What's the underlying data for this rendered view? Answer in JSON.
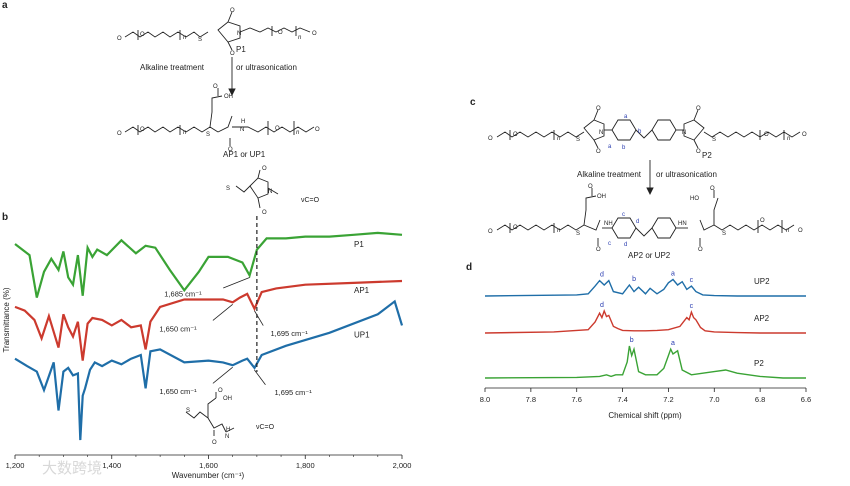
{
  "panels": {
    "a": "a",
    "b": "b",
    "c": "c",
    "d": "d"
  },
  "scheme_a": {
    "p1_label": "P1",
    "treatment": "Alkaline treatment",
    "treatment_alt": "or ultrasonication",
    "product_label": "AP1 or UP1",
    "n": "n",
    "oh": "OH",
    "o": "O",
    "s": "S",
    "n_atom": "N",
    "h": "H"
  },
  "scheme_c": {
    "p2_label": "P2",
    "treatment": "Alkaline treatment",
    "treatment_alt": "or ultrasonication",
    "product_label": "AP2 or UP2",
    "site_a": "a",
    "site_b": "b",
    "site_c": "c",
    "site_d": "d",
    "oh": "OH",
    "nh": "NH",
    "hn": "HN"
  },
  "inset_b": {
    "nu_top": "νC=O",
    "nu_bottom": "νC=O"
  },
  "chart_data": [
    {
      "type": "line",
      "title": "",
      "xlabel": "Wavenumber (cm⁻¹)",
      "ylabel": "Transmittance (%)",
      "xlim": [
        1200,
        2000
      ],
      "xticks": [
        "1,200",
        "1,400",
        "1,600",
        "1,800",
        "2,000"
      ],
      "series": [
        {
          "name": "P1",
          "color": "#3aa335",
          "x": [
            1200,
            1230,
            1245,
            1260,
            1275,
            1290,
            1300,
            1310,
            1320,
            1330,
            1340,
            1350,
            1360,
            1370,
            1390,
            1420,
            1450,
            1470,
            1490,
            1520,
            1550,
            1580,
            1600,
            1640,
            1670,
            1685,
            1700,
            1720,
            1760,
            1800,
            1850,
            1900,
            1950,
            2000
          ],
          "y": [
            6,
            5.4,
            3.1,
            4.5,
            5.2,
            4.6,
            5.6,
            4.2,
            3.8,
            5.4,
            3.2,
            5.8,
            5.3,
            5.7,
            5.4,
            6.2,
            5.5,
            5.9,
            5.8,
            4.6,
            3.5,
            4.5,
            5.3,
            5.3,
            5.0,
            4.3,
            5.7,
            6.3,
            6.3,
            6.4,
            6.4,
            6.5,
            6.6,
            6.5
          ]
        },
        {
          "name": "AP1",
          "color": "#cc3a2e",
          "x": [
            1200,
            1220,
            1240,
            1255,
            1270,
            1290,
            1300,
            1310,
            1320,
            1330,
            1340,
            1350,
            1360,
            1380,
            1400,
            1420,
            1440,
            1460,
            1470,
            1480,
            1500,
            1550,
            1600,
            1630,
            1650,
            1665,
            1680,
            1695,
            1710,
            1740,
            1800,
            1900,
            2000
          ],
          "y": [
            2.6,
            2.4,
            1.9,
            0.9,
            2.1,
            0.4,
            2.2,
            1.5,
            1.0,
            1.8,
            -0.3,
            1.7,
            2.0,
            1.9,
            1.6,
            1.9,
            1.5,
            1.6,
            0.3,
            1.8,
            2.6,
            3.0,
            3.0,
            3.0,
            2.85,
            3.1,
            3.3,
            2.5,
            3.4,
            3.6,
            3.8,
            3.9,
            4.0
          ]
        },
        {
          "name": "UP1",
          "color": "#1f6ea8",
          "x": [
            1200,
            1225,
            1245,
            1260,
            1280,
            1290,
            1300,
            1310,
            1320,
            1330,
            1335,
            1340,
            1345,
            1355,
            1365,
            1380,
            1400,
            1420,
            1440,
            1460,
            1470,
            1480,
            1500,
            1550,
            1600,
            1630,
            1650,
            1670,
            1680,
            1695,
            1710,
            1760,
            1850,
            1950,
            1985,
            2000
          ],
          "y": [
            -0.2,
            -0.6,
            -0.9,
            -1.9,
            -0.4,
            -3.0,
            -0.9,
            -0.7,
            -1.1,
            -1.0,
            -4.6,
            -2.2,
            -1.8,
            -0.8,
            -0.4,
            -0.6,
            -0.3,
            -0.5,
            -0.2,
            0.0,
            -1.8,
            0.2,
            0.3,
            -0.4,
            -0.3,
            -0.4,
            -0.55,
            -0.3,
            -0.2,
            -0.7,
            0.0,
            0.5,
            1.2,
            2.2,
            2.9,
            1.6
          ]
        }
      ],
      "annotations": [
        {
          "text": "1,685 cm⁻¹",
          "x": 1685,
          "series": "P1"
        },
        {
          "text": "1,650 cm⁻¹",
          "x": 1650,
          "series": "AP1"
        },
        {
          "text": "1,695 cm⁻¹",
          "x": 1695,
          "series": "AP1"
        },
        {
          "text": "1,650 cm⁻¹",
          "x": 1650,
          "series": "UP1"
        },
        {
          "text": "1,695 cm⁻¹",
          "x": 1695,
          "series": "UP1"
        }
      ],
      "dashed_line_x": 1700,
      "grid": false
    },
    {
      "type": "line",
      "title": "",
      "xlabel": "Chemical shift (ppm)",
      "ylabel": "",
      "xlim": [
        8.0,
        6.6
      ],
      "xticks": [
        "8.0",
        "7.8",
        "7.6",
        "7.4",
        "7.2",
        "7.0",
        "6.8",
        "6.6"
      ],
      "series": [
        {
          "name": "UP2",
          "color": "#1f6ea8",
          "x": [
            8.0,
            7.6,
            7.55,
            7.52,
            7.5,
            7.48,
            7.46,
            7.44,
            7.4,
            7.37,
            7.35,
            7.33,
            7.3,
            7.28,
            7.25,
            7.22,
            7.2,
            7.18,
            7.16,
            7.14,
            7.12,
            7.1,
            7.08,
            7.05,
            7.0,
            6.9,
            6.8,
            6.6
          ],
          "y": [
            0,
            0.05,
            0.1,
            0.45,
            0.7,
            0.5,
            0.7,
            0.2,
            0.1,
            0.5,
            0.2,
            0.4,
            0.1,
            0.35,
            0.1,
            0.3,
            0.6,
            0.75,
            0.5,
            0.65,
            0.3,
            0.45,
            0.2,
            0.05,
            0.02,
            0,
            0,
            0
          ]
        },
        {
          "name": "AP2",
          "color": "#cc3a2e",
          "x": [
            8.0,
            7.7,
            7.55,
            7.52,
            7.5,
            7.49,
            7.48,
            7.47,
            7.46,
            7.44,
            7.42,
            7.4,
            7.35,
            7.3,
            7.25,
            7.2,
            7.15,
            7.12,
            7.11,
            7.1,
            7.09,
            7.08,
            7.06,
            7.04,
            7.0,
            6.9,
            6.8,
            6.6
          ],
          "y": [
            0,
            0.05,
            0.15,
            0.5,
            0.9,
            0.7,
            1.0,
            0.75,
            0.8,
            0.3,
            0.2,
            0.12,
            0.1,
            0.1,
            0.12,
            0.15,
            0.3,
            0.7,
            0.6,
            0.95,
            0.7,
            0.6,
            0.25,
            0.1,
            0.05,
            0.02,
            0,
            0
          ]
        },
        {
          "name": "P2",
          "color": "#3aa335",
          "x": [
            8.0,
            7.6,
            7.5,
            7.47,
            7.45,
            7.43,
            7.4,
            7.38,
            7.37,
            7.36,
            7.35,
            7.33,
            7.3,
            7.25,
            7.22,
            7.2,
            7.19,
            7.18,
            7.16,
            7.14,
            7.1,
            7.05,
            7.0,
            6.95,
            6.9,
            6.8,
            6.7,
            6.6
          ],
          "y": [
            0,
            0.02,
            0.05,
            0.1,
            0.05,
            0.1,
            0.1,
            0.5,
            1.0,
            0.7,
            0.9,
            0.2,
            0.1,
            0.1,
            0.3,
            0.7,
            0.9,
            0.75,
            0.85,
            0.25,
            0.1,
            0.15,
            0.2,
            0.25,
            0.15,
            0.05,
            0,
            0
          ]
        }
      ],
      "peak_labels": [
        {
          "series": "UP2",
          "labels": [
            {
              "t": "d",
              "x": 7.49
            },
            {
              "t": "b",
              "x": 7.35
            },
            {
              "t": "a",
              "x": 7.18
            },
            {
              "t": "c",
              "x": 7.1
            }
          ]
        },
        {
          "series": "AP2",
          "labels": [
            {
              "t": "d",
              "x": 7.49
            },
            {
              "t": "c",
              "x": 7.1
            }
          ]
        },
        {
          "series": "P2",
          "labels": [
            {
              "t": "b",
              "x": 7.36
            },
            {
              "t": "a",
              "x": 7.18
            }
          ]
        }
      ],
      "grid": false
    }
  ],
  "watermark": "大数跨境"
}
